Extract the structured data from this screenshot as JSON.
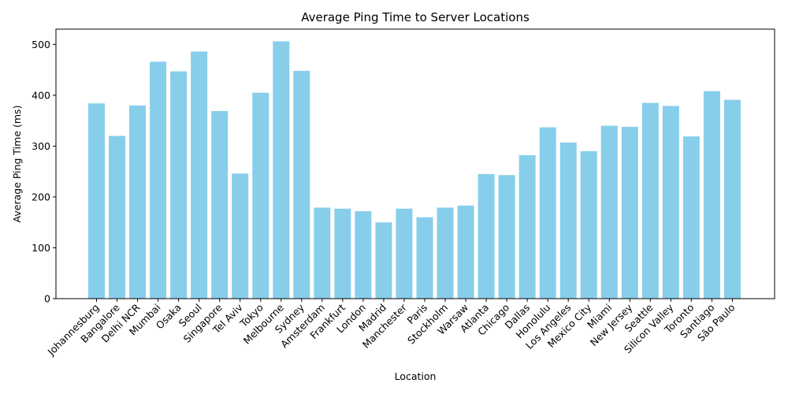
{
  "chart_data": {
    "type": "bar",
    "title": "Average Ping Time to Server Locations",
    "xlabel": "Location",
    "ylabel": "Average Ping Time (ms)",
    "ylim": [
      0,
      530
    ],
    "yticks": [
      0,
      100,
      200,
      300,
      400,
      500
    ],
    "bar_color": "#87ceeb",
    "grid": false,
    "categories": [
      "Johannesburg",
      "Bangalore",
      "Delhi NCR",
      "Mumbai",
      "Osaka",
      "Seoul",
      "Singapore",
      "Tel Aviv",
      "Tokyo",
      "Melbourne",
      "Sydney",
      "Amsterdam",
      "Frankfurt",
      "London",
      "Madrid",
      "Manchester",
      "Paris",
      "Stockholm",
      "Warsaw",
      "Atlanta",
      "Chicago",
      "Dallas",
      "Honolulu",
      "Los Angeles",
      "Mexico City",
      "Miami",
      "New Jersey",
      "Seattle",
      "Silicon Valley",
      "Toronto",
      "Santiago",
      "São Paulo"
    ],
    "values": [
      384,
      320,
      380,
      466,
      447,
      486,
      369,
      246,
      405,
      506,
      448,
      179,
      177,
      172,
      150,
      177,
      160,
      179,
      183,
      245,
      243,
      282,
      337,
      307,
      290,
      340,
      338,
      385,
      379,
      319,
      408,
      391
    ]
  }
}
